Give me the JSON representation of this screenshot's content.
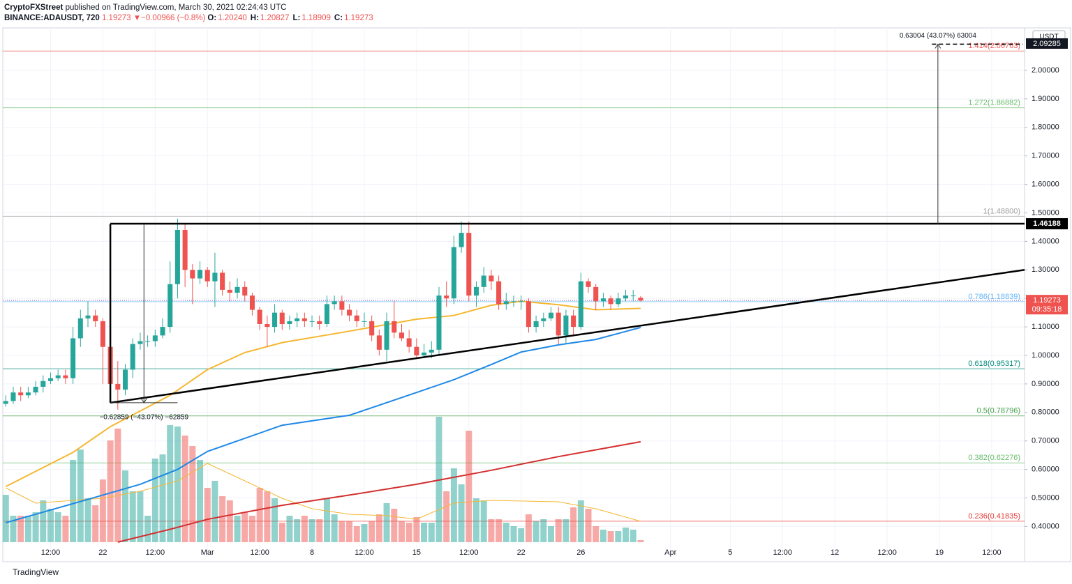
{
  "header": {
    "publisher": "CryptoFXStreet",
    "published": "published on TradingView.com, March 30, 2021 02:24:43 UTC",
    "symbol": "BINANCE:ADAUSDT, 720",
    "price": "1.19273",
    "change": "−0.00966 (−0.8%)",
    "ohlc": [
      {
        "label": "O:",
        "value": "1.20240"
      },
      {
        "label": "H:",
        "value": "1.20827"
      },
      {
        "label": "L:",
        "value": "1.18909"
      },
      {
        "label": "C:",
        "value": "1.19273"
      }
    ]
  },
  "chart_data": {
    "type": "candlestick",
    "up_color": "#26a69a",
    "down_color": "#ef5350",
    "grid": true,
    "currency": "USDT",
    "x": [
      0,
      1,
      2,
      3,
      4,
      5,
      6,
      7,
      8,
      9,
      10,
      11,
      12,
      13,
      14,
      15,
      16,
      17,
      18,
      19,
      20,
      21,
      22,
      23,
      24,
      25,
      26,
      27,
      28,
      29,
      30,
      31,
      32,
      33,
      34,
      35,
      36,
      37,
      38,
      39,
      40,
      41,
      42,
      43,
      44,
      45,
      46,
      47,
      48,
      49,
      50,
      51,
      52,
      53,
      54,
      55,
      56,
      57,
      58,
      59,
      60,
      61,
      62,
      63,
      64,
      65,
      66,
      67,
      68,
      69,
      70,
      71,
      72,
      73,
      74,
      75,
      76,
      77,
      78,
      79,
      80,
      81,
      82,
      83,
      84,
      85
    ],
    "open": [
      0.83,
      0.84,
      0.87,
      0.86,
      0.87,
      0.89,
      0.91,
      0.92,
      0.93,
      0.92,
      1.06,
      1.13,
      1.14,
      1.12,
      1.03,
      0.9,
      0.88,
      0.95,
      1.04,
      1.05,
      1.05,
      1.07,
      1.1,
      1.25,
      1.44,
      1.3,
      1.27,
      1.3,
      1.26,
      1.29,
      1.23,
      1.22,
      1.24,
      1.21,
      1.16,
      1.11,
      1.1,
      1.15,
      1.11,
      1.12,
      1.13,
      1.12,
      1.12,
      1.11,
      1.18,
      1.19,
      1.16,
      1.14,
      1.12,
      1.12,
      1.07,
      1.02,
      1.12,
      1.08,
      1.06,
      1.03,
      1.0,
      1.01,
      1.02,
      1.21,
      1.2,
      1.38,
      1.43,
      1.21,
      1.24,
      1.28,
      1.26,
      1.18,
      1.19,
      1.19,
      1.19,
      1.1,
      1.12,
      1.13,
      1.15,
      1.07,
      1.14,
      1.1,
      1.26,
      1.24,
      1.19,
      1.2,
      1.18,
      1.2,
      1.21,
      1.2024
    ],
    "high": [
      0.86,
      0.89,
      0.89,
      0.89,
      0.91,
      0.93,
      0.94,
      0.95,
      0.95,
      1.1,
      1.16,
      1.19,
      1.16,
      1.13,
      1.1,
      0.98,
      0.97,
      1.06,
      1.08,
      1.07,
      1.09,
      1.13,
      1.33,
      1.48,
      1.46,
      1.32,
      1.33,
      1.31,
      1.36,
      1.3,
      1.26,
      1.27,
      1.26,
      1.22,
      1.17,
      1.14,
      1.18,
      1.16,
      1.14,
      1.15,
      1.15,
      1.14,
      1.14,
      1.21,
      1.21,
      1.21,
      1.18,
      1.16,
      1.15,
      1.14,
      1.09,
      1.15,
      1.19,
      1.11,
      1.09,
      1.06,
      1.04,
      1.05,
      1.24,
      1.26,
      1.42,
      1.47,
      1.47,
      1.26,
      1.31,
      1.3,
      1.28,
      1.22,
      1.21,
      1.21,
      1.2,
      1.14,
      1.15,
      1.17,
      1.17,
      1.16,
      1.16,
      1.29,
      1.27,
      1.25,
      1.22,
      1.21,
      1.22,
      1.23,
      1.23,
      1.20827
    ],
    "low": [
      0.82,
      0.83,
      0.84,
      0.85,
      0.86,
      0.87,
      0.9,
      0.91,
      0.9,
      0.9,
      1.03,
      1.1,
      1.1,
      0.9,
      0.88,
      0.81,
      0.86,
      0.92,
      1.02,
      1.03,
      1.03,
      1.06,
      1.08,
      1.2,
      1.24,
      1.18,
      1.25,
      1.24,
      1.17,
      1.21,
      1.19,
      1.2,
      1.19,
      1.14,
      1.09,
      1.03,
      1.08,
      1.09,
      1.09,
      1.1,
      1.1,
      1.1,
      1.09,
      1.1,
      1.16,
      1.14,
      1.12,
      1.1,
      1.1,
      1.05,
      1.0,
      0.98,
      1.06,
      1.05,
      1.01,
      0.99,
      0.99,
      0.99,
      1.0,
      1.17,
      1.18,
      1.36,
      1.19,
      1.17,
      1.22,
      1.23,
      1.16,
      1.16,
      1.17,
      1.16,
      1.08,
      1.08,
      1.1,
      1.12,
      1.04,
      1.04,
      1.07,
      1.09,
      1.22,
      1.16,
      1.17,
      1.16,
      1.17,
      1.19,
      1.19,
      1.18909
    ],
    "close": [
      0.84,
      0.87,
      0.86,
      0.87,
      0.89,
      0.91,
      0.92,
      0.93,
      0.92,
      1.06,
      1.13,
      1.14,
      1.12,
      1.03,
      0.9,
      0.88,
      0.95,
      1.04,
      1.05,
      1.05,
      1.07,
      1.1,
      1.25,
      1.44,
      1.3,
      1.27,
      1.3,
      1.26,
      1.29,
      1.23,
      1.22,
      1.24,
      1.21,
      1.16,
      1.11,
      1.1,
      1.15,
      1.11,
      1.12,
      1.13,
      1.12,
      1.12,
      1.11,
      1.18,
      1.19,
      1.16,
      1.14,
      1.12,
      1.12,
      1.07,
      1.02,
      1.12,
      1.08,
      1.06,
      1.03,
      1.0,
      1.01,
      1.02,
      1.21,
      1.2,
      1.38,
      1.43,
      1.21,
      1.24,
      1.28,
      1.26,
      1.18,
      1.19,
      1.19,
      1.19,
      1.1,
      1.12,
      1.13,
      1.15,
      1.07,
      1.14,
      1.1,
      1.26,
      1.24,
      1.19,
      1.2,
      1.18,
      1.2,
      1.21,
      1.21,
      1.19273
    ],
    "volume": [
      68,
      38,
      38,
      38,
      43,
      60,
      48,
      43,
      38,
      118,
      133,
      63,
      53,
      90,
      146,
      163,
      103,
      73,
      73,
      38,
      120,
      126,
      168,
      166,
      153,
      138,
      118,
      78,
      88,
      66,
      60,
      38,
      43,
      38,
      78,
      73,
      63,
      28,
      38,
      33,
      38,
      33,
      33,
      63,
      40,
      30,
      30,
      23,
      26,
      30,
      40,
      56,
      48,
      30,
      28,
      36,
      28,
      28,
      180,
      73,
      106,
      83,
      160,
      63,
      60,
      33,
      33,
      28,
      23,
      20,
      40,
      30,
      33,
      23,
      33,
      33,
      50,
      60,
      48,
      23,
      18,
      16,
      16,
      21,
      18,
      3
    ],
    "volume_ma": {
      "color": "#f5b731",
      "x": [
        0,
        4,
        9,
        13,
        18,
        23,
        27,
        32,
        37,
        41,
        46,
        51,
        55,
        60,
        65,
        74,
        79,
        85
      ],
      "values": [
        78,
        56,
        60,
        63,
        73,
        88,
        113,
        88,
        63,
        48,
        40,
        38,
        33,
        56,
        60,
        58,
        48,
        30
      ]
    },
    "lines": [
      {
        "color": "#f5b731",
        "x": [
          0,
          9,
          14,
          22,
          27,
          32,
          37,
          46,
          55,
          60,
          65,
          69,
          74,
          79,
          85
        ],
        "values": [
          0.54,
          0.66,
          0.75,
          0.86,
          0.95,
          1.01,
          1.045,
          1.085,
          1.127,
          1.14,
          1.176,
          1.19,
          1.178,
          1.16,
          1.165
        ]
      },
      {
        "color": "#1e88e5",
        "x": [
          0,
          9,
          18,
          23,
          27,
          37,
          46,
          55,
          60,
          65,
          69,
          74,
          79,
          85
        ],
        "values": [
          0.413,
          0.48,
          0.548,
          0.6,
          0.663,
          0.755,
          0.79,
          0.87,
          0.915,
          0.968,
          1.012,
          1.037,
          1.056,
          1.098
        ]
      },
      {
        "color": "#d32f2f",
        "x": [
          15,
          22,
          27,
          37,
          46,
          55,
          65,
          74,
          85
        ],
        "values": [
          0.345,
          0.39,
          0.425,
          0.474,
          0.51,
          0.548,
          0.597,
          0.645,
          0.697
        ]
      }
    ],
    "xlim": [
      -0.4,
      136.4
    ],
    "xticks": [
      {
        "value": 6,
        "label": "12:00"
      },
      {
        "value": 13,
        "label": "22"
      },
      {
        "value": 20,
        "label": "12:00"
      },
      {
        "value": 27,
        "label": "Mar"
      },
      {
        "value": 34,
        "label": "12:00"
      },
      {
        "value": 41,
        "label": "8"
      },
      {
        "value": 48,
        "label": "12:00"
      },
      {
        "value": 55,
        "label": "15"
      },
      {
        "value": 62,
        "label": "12:00"
      },
      {
        "value": 69,
        "label": "22"
      },
      {
        "value": 77,
        "label": "26"
      },
      {
        "value": 89,
        "label": "Apr"
      },
      {
        "value": 97,
        "label": "5"
      },
      {
        "value": 104,
        "label": "12:00"
      },
      {
        "value": 111,
        "label": "12"
      },
      {
        "value": 118,
        "label": "12:00"
      },
      {
        "value": 125,
        "label": "19"
      },
      {
        "value": 132,
        "label": "12:00"
      }
    ],
    "ylim": [
      0.291,
      2.149
    ],
    "yticks": [
      {
        "value": 0.4,
        "label": "0.40000"
      },
      {
        "value": 0.5,
        "label": "0.50000"
      },
      {
        "value": 0.6,
        "label": "0.60000"
      },
      {
        "value": 0.7,
        "label": "0.70000"
      },
      {
        "value": 0.8,
        "label": "0.80000"
      },
      {
        "value": 0.9,
        "label": "0.90000"
      },
      {
        "value": 1.0,
        "label": "1.00000"
      },
      {
        "value": 1.1,
        "label": "1.10000"
      },
      {
        "value": 1.2,
        "label": "1.20000"
      },
      {
        "value": 1.3,
        "label": "1.30000"
      },
      {
        "value": 1.4,
        "label": "1.40000"
      },
      {
        "value": 1.5,
        "label": "1.50000"
      },
      {
        "value": 1.6,
        "label": "1.60000"
      },
      {
        "value": 1.7,
        "label": "1.70000"
      },
      {
        "value": 1.8,
        "label": "1.80000"
      },
      {
        "value": 1.9,
        "label": "1.90000"
      },
      {
        "value": 2.0,
        "label": "2.00000"
      }
    ],
    "fib_levels": [
      {
        "value": 2.06763,
        "label": "1.414(2.06763)",
        "color": "#ef5350"
      },
      {
        "value": 1.86882,
        "label": "1.272(1.86882)",
        "color": "#66bb6a"
      },
      {
        "value": 1.488,
        "label": "1(1.48800)",
        "color": "#9e9e9e"
      },
      {
        "value": 1.18839,
        "label": "0.786(1.18839)",
        "color": "#64b5f6"
      },
      {
        "value": 0.95317,
        "label": "0.618(0.95317)",
        "color": "#00897b"
      },
      {
        "value": 0.78796,
        "label": "0.5(0.78796)",
        "color": "#43a047"
      },
      {
        "value": 0.62276,
        "label": "0.382(0.62276)",
        "color": "#66bb6a"
      },
      {
        "value": 0.41835,
        "label": "0.236(0.41835)",
        "color": "#e53935"
      }
    ],
    "last_price": {
      "value": 1.19273,
      "label": "1.19273",
      "countdown": "09:35:18"
    },
    "drawings": {
      "resistance": {
        "value": 1.46188,
        "label": "1.46188",
        "x": 14
      },
      "triangle_low": {
        "x": 14,
        "value": 0.834
      },
      "trendline_end": {
        "x": 136.4,
        "value": 1.3
      },
      "measure_down": {
        "x": 18.5,
        "x_end": 23,
        "label": "−0.62859 (−43.07%) −62859"
      },
      "measure_up": {
        "x": 124.8,
        "x_start": 124,
        "x_end": 136.2,
        "value": 2.09192,
        "label": "0.63004 (43.07%) 63004"
      },
      "target_box": {
        "value": 2.09285,
        "label": "2.09285"
      }
    }
  },
  "footer": "TradingView"
}
